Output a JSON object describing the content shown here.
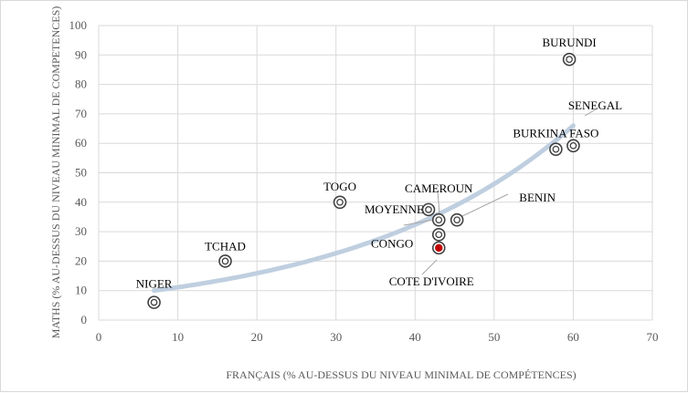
{
  "chart_data": {
    "type": "scatter",
    "title": "",
    "xlabel": "FRANÇAIS (% AU-DESSUS DU NIVEAU MINIMAL DE COMPÉTENCES)",
    "ylabel": "MATHS (% AU-DESSUS DU NIVEAU MINIMAL DE COMPETENCES)",
    "xlim": [
      0,
      70
    ],
    "ylim": [
      0,
      100
    ],
    "xticks": [
      "0",
      "10",
      "20",
      "30",
      "40",
      "50",
      "60",
      "70"
    ],
    "yticks": [
      "0",
      "10",
      "20",
      "30",
      "40",
      "50",
      "60",
      "70",
      "80",
      "90",
      "100"
    ],
    "grid": true,
    "points": [
      {
        "label": "NIGER",
        "x": 7,
        "y": 6
      },
      {
        "label": "TCHAD",
        "x": 16,
        "y": 20
      },
      {
        "label": "TOGO",
        "x": 30.5,
        "y": 40
      },
      {
        "label": "MOYENNE",
        "x": 41.7,
        "y": 37.5
      },
      {
        "label": "CAMEROUN",
        "x": 43,
        "y": 34
      },
      {
        "label": "CONGO",
        "x": 43,
        "y": 29
      },
      {
        "label": "COTE D'IVOIRE",
        "x": 43,
        "y": 24.5,
        "highlight": true
      },
      {
        "label": "BENIN",
        "x": 45.3,
        "y": 34
      },
      {
        "label": "BURKINA FASO",
        "x": 57.8,
        "y": 58
      },
      {
        "label": "SENEGAL",
        "x": 60,
        "y": 59.2
      },
      {
        "label": "BURUNDI",
        "x": 59.5,
        "y": 88.5
      }
    ],
    "trendline": {
      "type": "exponential",
      "x_start": 7,
      "x_end": 60,
      "y_start": 10,
      "y_end": 66
    },
    "colors": {
      "marker": "#404040",
      "highlight": "#c00000",
      "trendline": "#bfcfe0",
      "grid": "#d9d9d9"
    }
  }
}
